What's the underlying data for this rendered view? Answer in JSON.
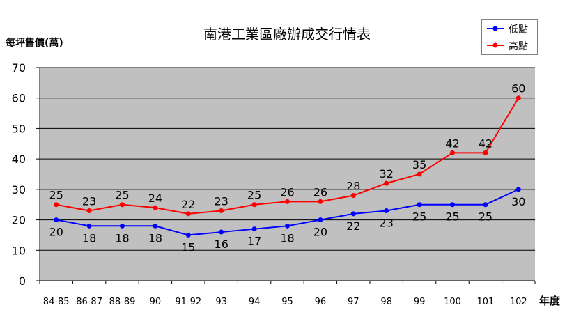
{
  "chart_data": {
    "type": "line",
    "title": "南港工業區廠辦成交行情表",
    "ylabel": "每坪售價(萬)",
    "xlabel": "年度",
    "categories": [
      "84-85",
      "86-87",
      "88-89",
      "90",
      "91-92",
      "93",
      "94",
      "95",
      "96",
      "97",
      "98",
      "99",
      "100",
      "101",
      "102"
    ],
    "ylim": [
      0,
      70
    ],
    "yticks": [
      0,
      10,
      20,
      30,
      40,
      50,
      60,
      70
    ],
    "grid": true,
    "legend_position": "top-right",
    "series": [
      {
        "name": "低點",
        "color": "#0000ff",
        "values": [
          20,
          18,
          18,
          18,
          15,
          16,
          17,
          18,
          20,
          22,
          23,
          25,
          25,
          25,
          30
        ]
      },
      {
        "name": "高點",
        "color": "#ff0000",
        "values": [
          25,
          23,
          25,
          24,
          22,
          23,
          25,
          26,
          26,
          28,
          32,
          35,
          42,
          42,
          60
        ]
      }
    ],
    "plot_background": "#c0c0c0"
  }
}
